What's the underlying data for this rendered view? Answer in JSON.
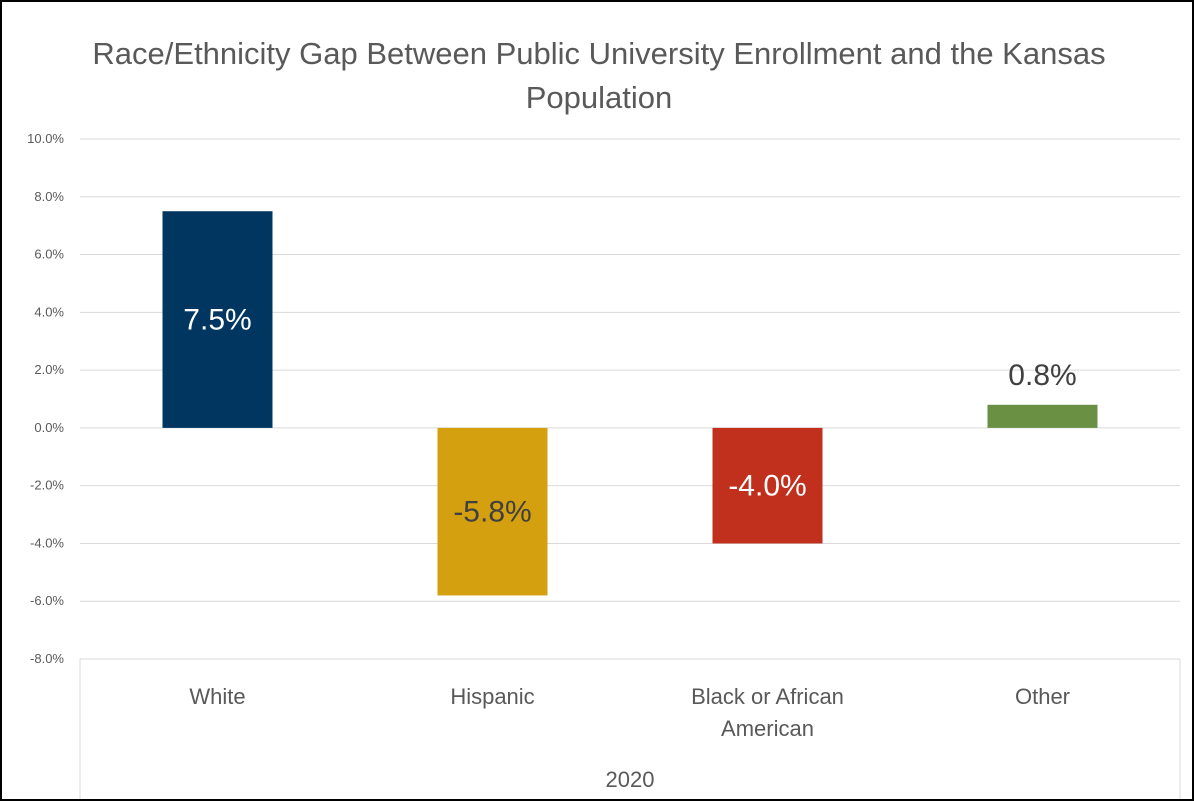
{
  "chart_data": {
    "type": "bar",
    "title": "Race/Ethnicity Gap Between Public University Enrollment and the Kansas Population",
    "categories": [
      "White",
      "Hispanic",
      "Black or African American",
      "Other"
    ],
    "category_lines": [
      [
        "White"
      ],
      [
        "Hispanic"
      ],
      [
        "Black or African",
        "American"
      ],
      [
        "Other"
      ]
    ],
    "group_label": "2020",
    "values": [
      7.5,
      -5.8,
      -4.0,
      0.8
    ],
    "data_labels": [
      "7.5%",
      "-5.8%",
      "-4.0%",
      "0.8%"
    ],
    "colors": [
      "#003660",
      "#D4A00F",
      "#C1301C",
      "#6A9043"
    ],
    "data_label_colors": [
      "#ffffff",
      "#404040",
      "#ffffff",
      "#404040"
    ],
    "data_label_position": [
      "inside",
      "inside",
      "inside",
      "outside"
    ],
    "ylim": [
      -8,
      10
    ],
    "yticks": [
      10,
      8,
      6,
      4,
      2,
      0,
      -2,
      -4,
      -6,
      -8
    ],
    "ytick_labels": [
      "10.0%",
      "8.0%",
      "6.0%",
      "4.0%",
      "2.0%",
      "0.0%",
      "-2.0%",
      "-4.0%",
      "-6.0%",
      "-8.0%"
    ],
    "grid": true,
    "legend": "none"
  }
}
